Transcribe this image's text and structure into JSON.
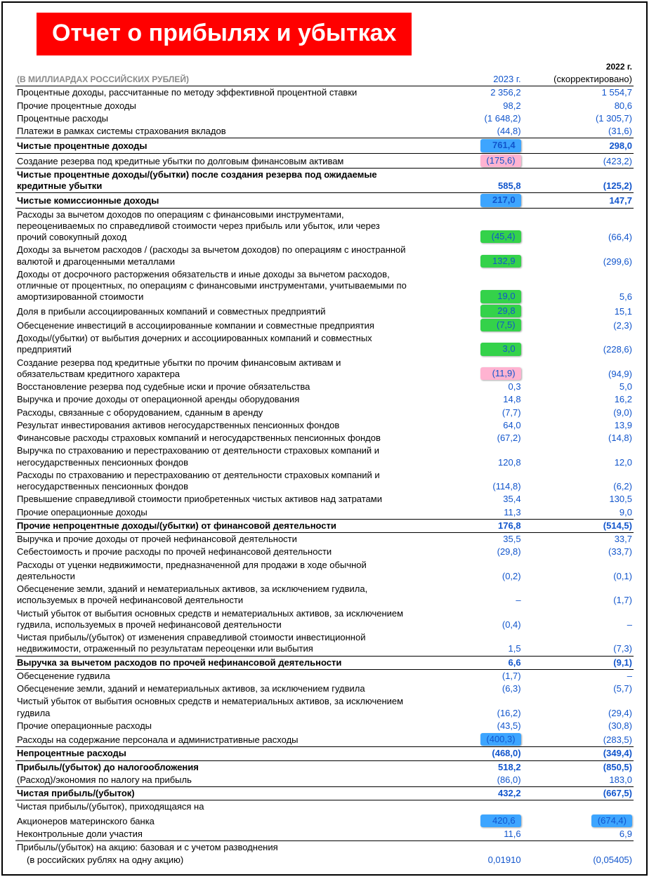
{
  "title": "Отчет о прибылях и убытках",
  "unit_note": "(В МИЛЛИАРДАХ РОССИЙСКИХ РУБЛЕЙ)",
  "col1_year": "2023 г.",
  "col2_year": "2022 г.",
  "col2_sub": "(скорректировано)",
  "colors": {
    "banner_bg": "#ff0000",
    "banner_fg": "#ffffff",
    "link_blue": "#1155cc",
    "hl_blue": "#3da5ff",
    "hl_pink": "#ffb3d1",
    "hl_green": "#34d24a"
  },
  "rows": [
    {
      "label": "Процентные доходы, рассчитанные по методу эффективной процентной ставки",
      "v1": "2 356,2",
      "v2": "1 554,7",
      "c": "blue"
    },
    {
      "label": "Прочие процентные доходы",
      "v1": "98,2",
      "v2": "80,6",
      "c": "blue"
    },
    {
      "label": "Процентные расходы",
      "v1": "(1 648,2)",
      "v2": "(1 305,7)",
      "c": "blue"
    },
    {
      "label": "Платежи в рамках системы страхования вкладов",
      "v1": "(44,8)",
      "v2": "(31,6)",
      "c": "blue"
    },
    {
      "label": "Чистые процентные доходы",
      "v1": "761,4",
      "v2": "298,0",
      "c": "blue",
      "bold": true,
      "top": true,
      "bot": true,
      "hl1": "hl_blue"
    },
    {
      "label": "Создание резерва под кредитные убытки по долговым финансовым активам",
      "v1": "(175,6)",
      "v2": "(423,2)",
      "c": "blue",
      "hl1": "hl_pink",
      "pad": true
    },
    {
      "label": "Чистые процентные доходы/(убытки) после создания резерва под ожидаемые кредитные убытки",
      "v1": "585,8",
      "v2": "(125,2)",
      "c": "blue",
      "bold": true,
      "top": true,
      "bot": true
    },
    {
      "label": "Чистые комиссионные доходы",
      "v1": "217,0",
      "v2": "147,7",
      "c": "blue",
      "bold": true,
      "bot": true,
      "pad": true,
      "hl1": "hl_blue"
    },
    {
      "label": "Расходы за вычетом доходов по операциям с финансовыми инструментами, переоцениваемых по справедливой стоимости через прибыль или убыток, или через прочий совокупный доход",
      "v1": "(45,4)",
      "v2": "(66,4)",
      "c": "blue",
      "pad": true,
      "hl1": "hl_green"
    },
    {
      "label": "Доходы за вычетом расходов / (расходы за вычетом доходов) по операциям с иностранной валютой и драгоценными металлами",
      "v1": "132,9",
      "v2": "(299,6)",
      "c": "blue",
      "hl1": "hl_green"
    },
    {
      "label": "Доходы от досрочного расторжения обязательств и иные доходы за вычетом расходов, отличные от процентных, по операциям с финансовыми инструментами, учитываемыми по амортизированной стоимости",
      "v1": "19,0",
      "v2": "5,6",
      "c": "blue",
      "hl1": "hl_green"
    },
    {
      "label": "Доля в прибыли ассоциированных компаний и совместных предприятий",
      "v1": "29,8",
      "v2": "15,1",
      "c": "blue",
      "hl1": "hl_green"
    },
    {
      "label": "Обесценение инвестиций в ассоциированные компании и совместные предприятия",
      "v1": "(7,5)",
      "v2": "(2,3)",
      "c": "blue",
      "hl1": "hl_green"
    },
    {
      "label": "Доходы/(убытки) от выбытия дочерних и ассоциированных компаний и совместных предприятий",
      "v1": "3,0",
      "v2": "(228,6)",
      "c": "blue",
      "hl1": "hl_green"
    },
    {
      "label": "Создание резерва под кредитные убытки по прочим финансовым активам и обязательствам кредитного характера",
      "v1": "(11,9)",
      "v2": "(94,9)",
      "c": "blue",
      "hl1": "hl_pink"
    },
    {
      "label": "Восстановление резерва под судебные иски и прочие обязательства",
      "v1": "0,3",
      "v2": "5,0",
      "c": "blue"
    },
    {
      "label": "Выручка и прочие доходы от операционной аренды оборудования",
      "v1": "14,8",
      "v2": "16,2",
      "c": "blue"
    },
    {
      "label": "Расходы, связанные с оборудованием, сданным в аренду",
      "v1": "(7,7)",
      "v2": "(9,0)",
      "c": "blue"
    },
    {
      "label": "Результат инвестирования активов негосударственных пенсионных фондов",
      "v1": "64,0",
      "v2": "13,9",
      "c": "blue"
    },
    {
      "label": "Финансовые расходы страховых компаний и негосударственных пенсионных фондов",
      "v1": "(67,2)",
      "v2": "(14,8)",
      "c": "blue"
    },
    {
      "label": "Выручка по страхованию и перестрахованию от деятельности страховых компаний и негосударственных пенсионных фондов",
      "v1": "120,8",
      "v2": "12,0",
      "c": "blue"
    },
    {
      "label": "Расходы по страхованию и перестрахованию от деятельности страховых компаний и негосударственных пенсионных фондов",
      "v1": "(114,8)",
      "v2": "(6,2)",
      "c": "blue"
    },
    {
      "label": "Превышение справедливой стоимости приобретенных чистых активов над затратами",
      "v1": "35,4",
      "v2": "130,5",
      "c": "blue"
    },
    {
      "label": "Прочие операционные доходы",
      "v1": "11,3",
      "v2": "9,0",
      "c": "blue"
    },
    {
      "label": "Прочие непроцентные доходы/(убытки) от финансовой деятельности",
      "v1": "176,8",
      "v2": "(514,5)",
      "c": "blue",
      "bold": true,
      "top": true,
      "bot": true
    },
    {
      "label": "Выручка и прочие доходы от прочей нефинансовой деятельности",
      "v1": "35,5",
      "v2": "33,7",
      "c": "blue",
      "pad": true
    },
    {
      "label": "Себестоимость и прочие расходы по прочей нефинансовой деятельности",
      "v1": "(29,8)",
      "v2": "(33,7)",
      "c": "blue"
    },
    {
      "label": "Расходы от уценки недвижимости, предназначенной для продажи в ходе обычной деятельности",
      "v1": "(0,2)",
      "v2": "(0,1)",
      "c": "blue"
    },
    {
      "label": "Обесценение земли, зданий и нематериальных активов, за исключением гудвила, используемых в прочей нефинансовой деятельности",
      "v1": "–",
      "v2": "(1,7)",
      "c": "blue"
    },
    {
      "label": "Чистый убыток от выбытия основных средств и нематериальных активов, за исключением гудвила, используемых в прочей нефинансовой деятельности",
      "v1": "(0,4)",
      "v2": "–",
      "c": "blue"
    },
    {
      "label": "Чистая прибыль/(убыток) от изменения справедливой стоимости инвестиционной недвижимости, отраженный по результатам переоценки или выбытия",
      "v1": "1,5",
      "v2": "(7,3)",
      "c": "blue"
    },
    {
      "label": "Выручка за вычетом расходов по прочей нефинансовой деятельности",
      "v1": "6,6",
      "v2": "(9,1)",
      "c": "blue",
      "bold": true,
      "top": true,
      "bot": true
    },
    {
      "label": "Обесценение гудвила",
      "v1": "(1,7)",
      "v2": "–",
      "c": "blue",
      "pad": true
    },
    {
      "label": "Обесценение земли, зданий и нематериальных активов, за исключением гудвила",
      "v1": "(6,3)",
      "v2": "(5,7)",
      "c": "blue"
    },
    {
      "label": "Чистый убыток от выбытия основных средств и нематериальных активов, за исключением гудвила",
      "v1": "(16,2)",
      "v2": "(29,4)",
      "c": "blue"
    },
    {
      "label": "Прочие операционные расходы",
      "v1": "(43,5)",
      "v2": "(30,8)",
      "c": "blue"
    },
    {
      "label": "Расходы на содержание персонала и административные расходы",
      "v1": "(400,3)",
      "v2": "(283,5)",
      "c": "blue",
      "hl1": "hl_blue"
    },
    {
      "label": "Непроцентные расходы",
      "v1": "(468,0)",
      "v2": "(349,4)",
      "c": "blue",
      "bold": true,
      "top": true,
      "bot": true
    },
    {
      "label": "Прибыль/(убыток) до налогообложения",
      "v1": "518,2",
      "v2": "(850,5)",
      "c": "blue",
      "bold": true,
      "pad": true
    },
    {
      "label": "(Расход)/экономия по налогу на прибыль",
      "v1": "(86,0)",
      "v2": "183,0",
      "c": "blue"
    },
    {
      "label": "Чистая прибыль/(убыток)",
      "v1": "432,2",
      "v2": "(667,5)",
      "c": "blue",
      "bold": true,
      "top": true,
      "bot": true,
      "pad": true
    },
    {
      "label": "Чистая прибыль/(убыток), приходящаяся на",
      "v1": "",
      "v2": "",
      "c": "black",
      "pad": true
    },
    {
      "label": "Акционеров материнского банка",
      "v1": "420,6",
      "v2": "(674,4)",
      "c": "blue",
      "hl1": "hl_blue",
      "hl2": "hl_blue"
    },
    {
      "label": "Неконтрольные доли участия",
      "v1": "11,6",
      "v2": "6,9",
      "c": "blue",
      "bot": true
    },
    {
      "label": "Прибыль/(убыток) на акцию: базовая и с учетом разводнения",
      "v1": "",
      "v2": "",
      "c": "black",
      "pad": true
    },
    {
      "label": "(в российских рублях на одну акцию)",
      "v1": "0,01910",
      "v2": "(0,05405)",
      "c": "blue",
      "indent": true
    }
  ]
}
